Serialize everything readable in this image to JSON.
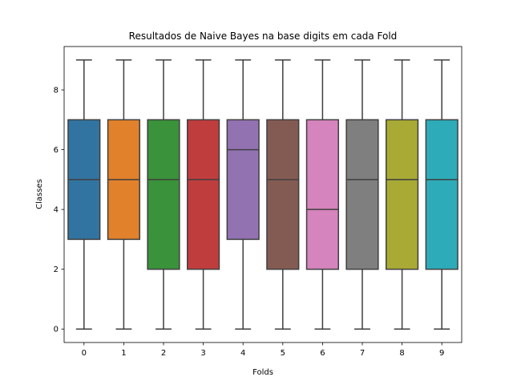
{
  "chart_data": {
    "type": "boxplot",
    "title": "Resultados de Naive Bayes na base digits em cada Fold",
    "xlabel": "Folds",
    "ylabel": "Classes",
    "categories": [
      "0",
      "1",
      "2",
      "3",
      "4",
      "5",
      "6",
      "7",
      "8",
      "9"
    ],
    "boxes": [
      {
        "category": "0",
        "min": 0,
        "q1": 3,
        "median": 5,
        "q3": 7,
        "max": 9,
        "color": "#3274a1"
      },
      {
        "category": "1",
        "min": 0,
        "q1": 3,
        "median": 5,
        "q3": 7,
        "max": 9,
        "color": "#e1812c"
      },
      {
        "category": "2",
        "min": 0,
        "q1": 2,
        "median": 5,
        "q3": 7,
        "max": 9,
        "color": "#3a923a"
      },
      {
        "category": "3",
        "min": 0,
        "q1": 2,
        "median": 5,
        "q3": 7,
        "max": 9,
        "color": "#c03d3e"
      },
      {
        "category": "4",
        "min": 0,
        "q1": 3,
        "median": 6,
        "q3": 7,
        "max": 9,
        "color": "#9372b2"
      },
      {
        "category": "5",
        "min": 0,
        "q1": 2,
        "median": 5,
        "q3": 7,
        "max": 9,
        "color": "#845b53"
      },
      {
        "category": "6",
        "min": 0,
        "q1": 2,
        "median": 4,
        "q3": 7,
        "max": 9,
        "color": "#d684bd"
      },
      {
        "category": "7",
        "min": 0,
        "q1": 2,
        "median": 5,
        "q3": 7,
        "max": 9,
        "color": "#7f7f7f"
      },
      {
        "category": "8",
        "min": 0,
        "q1": 2,
        "median": 5,
        "q3": 7,
        "max": 9,
        "color": "#a9aa35"
      },
      {
        "category": "9",
        "min": 0,
        "q1": 2,
        "median": 5,
        "q3": 7,
        "max": 9,
        "color": "#2eabb8"
      }
    ],
    "yticks": [
      0,
      2,
      4,
      6,
      8
    ],
    "ylim": [
      -0.45,
      9.45
    ],
    "grid": false,
    "legend": "none",
    "line_color": "#3f3f3f"
  }
}
